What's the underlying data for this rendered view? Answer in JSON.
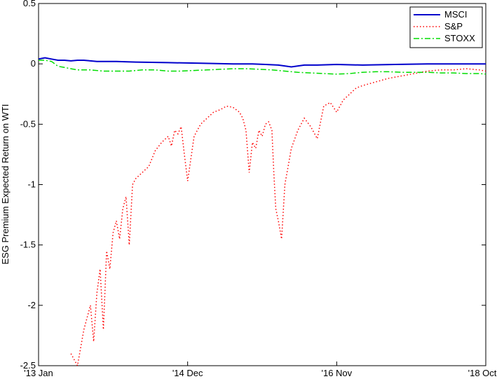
{
  "chart_data": {
    "type": "line",
    "title": "",
    "xlabel": "",
    "ylabel": "ESG Premium Expected Return on WTI",
    "x_ticks": [
      "'13 Jan",
      "'14 Dec",
      "'16 Nov",
      "'18 Oct"
    ],
    "x_tick_positions": [
      0,
      23,
      46,
      69
    ],
    "xlim": [
      0,
      69
    ],
    "ylim": [
      -2.5,
      0.5
    ],
    "y_ticks": [
      0.5,
      0,
      -0.5,
      -1,
      -1.5,
      -2,
      -2.5
    ],
    "y_tick_labels": [
      "0.5",
      "0",
      "-0.5",
      "-1",
      "-1.5",
      "-2",
      "-2.5"
    ],
    "grid": false,
    "legend_position": "top-right",
    "series": [
      {
        "name": "MSCI",
        "color": "#0000cc",
        "style": "solid",
        "x": [
          0,
          1,
          2,
          3,
          4,
          5,
          6,
          7,
          8,
          9,
          10,
          12,
          15,
          20,
          25,
          30,
          33,
          35,
          37,
          39,
          41,
          43,
          46,
          50,
          55,
          60,
          65,
          69
        ],
        "y": [
          0.04,
          0.05,
          0.04,
          0.03,
          0.03,
          0.025,
          0.03,
          0.03,
          0.025,
          0.02,
          0.02,
          0.02,
          0.015,
          0.01,
          0.005,
          0.0,
          0.0,
          -0.005,
          -0.01,
          -0.025,
          -0.01,
          -0.01,
          -0.005,
          -0.01,
          -0.005,
          0.0,
          0.0,
          0.0
        ]
      },
      {
        "name": "S&P",
        "color": "#ff0000",
        "style": "dotted",
        "x": [
          5,
          6,
          7,
          8,
          8.5,
          9,
          9.5,
          10,
          10.5,
          11,
          11.5,
          12,
          12.5,
          13,
          13.5,
          14,
          14.5,
          15,
          16,
          17,
          18,
          19,
          20,
          20.5,
          21,
          21.5,
          22,
          22.5,
          23,
          24,
          25,
          26,
          27,
          28,
          29,
          30,
          31,
          31.5,
          32,
          32.5,
          33,
          33.5,
          34,
          34.5,
          35,
          35.5,
          36,
          36.3,
          36.6,
          37,
          37.5,
          38,
          39,
          40,
          40.5,
          41,
          42,
          43,
          44,
          45,
          46,
          47,
          48,
          49,
          50,
          52,
          54,
          56,
          58,
          60,
          62,
          64,
          66,
          68,
          69
        ],
        "y": [
          -2.4,
          -2.5,
          -2.2,
          -2.0,
          -2.3,
          -1.9,
          -1.7,
          -2.2,
          -1.55,
          -1.7,
          -1.4,
          -1.3,
          -1.45,
          -1.2,
          -1.1,
          -1.5,
          -1.0,
          -0.95,
          -0.9,
          -0.85,
          -0.72,
          -0.65,
          -0.6,
          -0.68,
          -0.55,
          -0.58,
          -0.52,
          -0.75,
          -0.97,
          -0.6,
          -0.5,
          -0.45,
          -0.4,
          -0.38,
          -0.35,
          -0.36,
          -0.4,
          -0.45,
          -0.55,
          -0.9,
          -0.65,
          -0.7,
          -0.55,
          -0.6,
          -0.5,
          -0.48,
          -0.55,
          -0.9,
          -1.2,
          -1.3,
          -1.45,
          -1.0,
          -0.7,
          -0.55,
          -0.5,
          -0.45,
          -0.52,
          -0.62,
          -0.35,
          -0.32,
          -0.4,
          -0.3,
          -0.25,
          -0.2,
          -0.18,
          -0.15,
          -0.12,
          -0.1,
          -0.08,
          -0.06,
          -0.05,
          -0.05,
          -0.04,
          -0.05,
          -0.06
        ]
      },
      {
        "name": "STOXX",
        "color": "#00dd00",
        "style": "dashdot",
        "x": [
          0,
          1,
          2,
          3,
          4,
          5,
          6,
          8,
          10,
          12,
          14,
          16,
          18,
          20,
          22,
          24,
          26,
          28,
          30,
          32,
          34,
          36,
          38,
          40,
          42,
          44,
          46,
          48,
          50,
          52,
          54,
          56,
          58,
          60,
          62,
          64,
          66,
          68,
          69
        ],
        "y": [
          0.03,
          0.03,
          0.02,
          -0.02,
          -0.03,
          -0.04,
          -0.05,
          -0.05,
          -0.06,
          -0.06,
          -0.06,
          -0.05,
          -0.05,
          -0.06,
          -0.06,
          -0.055,
          -0.05,
          -0.045,
          -0.04,
          -0.04,
          -0.045,
          -0.05,
          -0.06,
          -0.07,
          -0.075,
          -0.08,
          -0.085,
          -0.08,
          -0.07,
          -0.065,
          -0.065,
          -0.07,
          -0.07,
          -0.07,
          -0.075,
          -0.075,
          -0.08,
          -0.08,
          -0.085
        ]
      }
    ]
  }
}
